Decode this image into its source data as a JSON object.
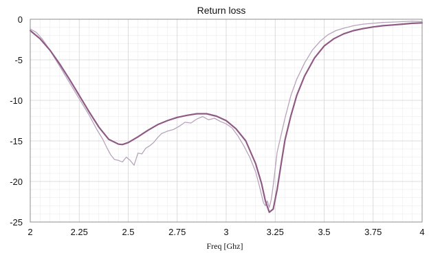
{
  "chart_data": {
    "type": "line",
    "title": "Return loss",
    "xlabel": "Freq [Ghz]",
    "ylabel": "",
    "xlim": [
      2,
      4
    ],
    "ylim": [
      -25,
      0
    ],
    "xticks": [
      "2",
      "2.25",
      "2.5",
      "2.75",
      "3",
      "3.25",
      "3.5",
      "3.75",
      "4"
    ],
    "yticks": [
      "0",
      "-5",
      "-10",
      "-15",
      "-20",
      "-25"
    ],
    "grid": true,
    "series": [
      {
        "color": "#b7a3bc",
        "x": [
          2.0,
          2.03,
          2.06,
          2.1,
          2.14,
          2.18,
          2.22,
          2.26,
          2.3,
          2.34,
          2.37,
          2.39,
          2.41,
          2.43,
          2.45,
          2.47,
          2.49,
          2.51,
          2.53,
          2.55,
          2.57,
          2.59,
          2.61,
          2.63,
          2.65,
          2.67,
          2.7,
          2.73,
          2.76,
          2.79,
          2.82,
          2.85,
          2.88,
          2.91,
          2.94,
          2.97,
          3.0,
          3.03,
          3.06,
          3.09,
          3.12,
          3.15,
          3.17,
          3.19,
          3.2,
          3.21,
          3.22,
          3.23,
          3.24,
          3.26,
          3.28,
          3.3,
          3.33,
          3.36,
          3.4,
          3.44,
          3.48,
          3.52,
          3.56,
          3.6,
          3.65,
          3.7,
          3.75,
          3.8,
          3.85,
          3.9,
          3.95,
          4.0
        ],
        "values": [
          -1.2,
          -1.6,
          -2.4,
          -3.8,
          -5.4,
          -7.0,
          -8.6,
          -10.2,
          -11.8,
          -13.6,
          -14.8,
          -15.8,
          -16.7,
          -17.3,
          -17.4,
          -17.6,
          -17.0,
          -17.4,
          -18.0,
          -16.5,
          -16.6,
          -15.9,
          -15.6,
          -15.2,
          -14.6,
          -14.1,
          -13.8,
          -13.6,
          -13.2,
          -12.7,
          -12.8,
          -12.3,
          -12.0,
          -12.4,
          -12.2,
          -12.6,
          -12.9,
          -13.4,
          -14.4,
          -15.6,
          -17.0,
          -18.8,
          -20.6,
          -22.6,
          -23.0,
          -22.4,
          -23.2,
          -22.2,
          -20.5,
          -16.4,
          -14.3,
          -12.2,
          -9.4,
          -7.4,
          -5.4,
          -3.8,
          -2.7,
          -1.9,
          -1.4,
          -1.1,
          -0.8,
          -0.6,
          -0.5,
          -0.4,
          -0.35,
          -0.3,
          -0.25,
          -0.3
        ]
      },
      {
        "color": "#8e5a84",
        "x": [
          2.0,
          2.05,
          2.1,
          2.15,
          2.2,
          2.25,
          2.3,
          2.35,
          2.4,
          2.45,
          2.47,
          2.5,
          2.55,
          2.6,
          2.65,
          2.7,
          2.75,
          2.8,
          2.85,
          2.9,
          2.95,
          3.0,
          3.05,
          3.1,
          3.15,
          3.18,
          3.2,
          3.22,
          3.24,
          3.26,
          3.28,
          3.3,
          3.33,
          3.36,
          3.4,
          3.45,
          3.5,
          3.55,
          3.6,
          3.65,
          3.7,
          3.75,
          3.8,
          3.85,
          3.9,
          3.95,
          4.0
        ],
        "values": [
          -1.4,
          -2.4,
          -3.8,
          -5.5,
          -7.4,
          -9.4,
          -11.4,
          -13.3,
          -14.8,
          -15.4,
          -15.45,
          -15.2,
          -14.5,
          -13.7,
          -13.0,
          -12.5,
          -12.1,
          -11.85,
          -11.65,
          -11.65,
          -11.95,
          -12.5,
          -13.5,
          -15.0,
          -17.8,
          -20.2,
          -22.4,
          -23.8,
          -23.4,
          -21.0,
          -17.9,
          -14.9,
          -11.9,
          -9.4,
          -7.0,
          -4.8,
          -3.3,
          -2.4,
          -1.8,
          -1.4,
          -1.15,
          -0.95,
          -0.8,
          -0.7,
          -0.6,
          -0.5,
          -0.45
        ]
      }
    ]
  }
}
